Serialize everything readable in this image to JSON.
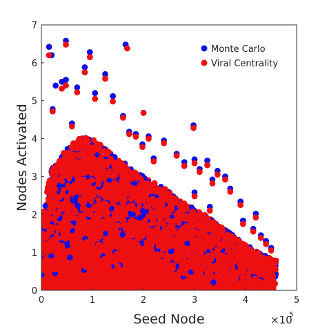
{
  "chart_data": {
    "type": "scatter",
    "xlabel": "Seed Node",
    "ylabel": "Nodes Activated",
    "x_multiplier_label": "×10",
    "x_multiplier_exponent": "5",
    "xlim": [
      0,
      500000
    ],
    "ylim": [
      0,
      7
    ],
    "x_ticks": [
      "0",
      "1",
      "2",
      "3",
      "4",
      "5"
    ],
    "y_ticks": [
      "0",
      "1",
      "2",
      "3",
      "4",
      "5",
      "6",
      "7"
    ],
    "legend_position": "top-right",
    "series": [
      {
        "name": "Monte Carlo",
        "color": "#1010e0",
        "points": [
          [
            15000,
            6.42
          ],
          [
            48000,
            6.58
          ],
          [
            20000,
            6.2
          ],
          [
            95000,
            6.28
          ],
          [
            165000,
            6.48
          ],
          [
            85000,
            5.88
          ],
          [
            125000,
            5.7
          ],
          [
            48000,
            5.55
          ],
          [
            40000,
            5.5
          ],
          [
            28000,
            5.4
          ],
          [
            70000,
            5.35
          ],
          [
            105000,
            5.2
          ],
          [
            140000,
            5.12
          ],
          [
            160000,
            4.6
          ],
          [
            200000,
            4.68
          ],
          [
            22000,
            4.78
          ],
          [
            60000,
            4.4
          ],
          [
            298000,
            4.35
          ],
          [
            172000,
            4.18
          ],
          [
            185000,
            4.12
          ],
          [
            210000,
            4.06
          ],
          [
            240000,
            3.95
          ],
          [
            198000,
            3.85
          ],
          [
            265000,
            3.6
          ],
          [
            220000,
            3.48
          ],
          [
            300000,
            3.45
          ],
          [
            325000,
            3.42
          ],
          [
            280000,
            3.38
          ],
          [
            310000,
            3.2
          ],
          [
            345000,
            3.15
          ],
          [
            360000,
            3.0
          ],
          [
            335000,
            2.92
          ],
          [
            370000,
            2.68
          ],
          [
            300000,
            2.58
          ],
          [
            390000,
            2.34
          ],
          [
            330000,
            2.2
          ],
          [
            420000,
            2.02
          ],
          [
            395000,
            1.84
          ],
          [
            415000,
            1.62
          ],
          [
            430000,
            1.45
          ],
          [
            440000,
            1.3
          ],
          [
            450000,
            1.12
          ]
        ]
      },
      {
        "name": "Viral Centrality",
        "color": "#ee1010",
        "points": [
          [
            15000,
            6.2
          ],
          [
            48000,
            6.48
          ],
          [
            168000,
            6.38
          ],
          [
            95000,
            6.15
          ],
          [
            85000,
            5.75
          ],
          [
            125000,
            5.58
          ],
          [
            48000,
            5.4
          ],
          [
            40000,
            5.32
          ],
          [
            70000,
            5.22
          ],
          [
            105000,
            5.05
          ],
          [
            140000,
            4.98
          ],
          [
            160000,
            4.55
          ],
          [
            200000,
            4.68
          ],
          [
            22000,
            4.72
          ],
          [
            60000,
            4.32
          ],
          [
            298000,
            4.28
          ],
          [
            172000,
            4.12
          ],
          [
            185000,
            4.05
          ],
          [
            210000,
            4.0
          ],
          [
            240000,
            3.88
          ],
          [
            198000,
            3.78
          ],
          [
            265000,
            3.55
          ],
          [
            220000,
            3.4
          ],
          [
            300000,
            3.35
          ],
          [
            325000,
            3.3
          ],
          [
            280000,
            3.28
          ],
          [
            310000,
            3.12
          ],
          [
            345000,
            3.05
          ],
          [
            360000,
            2.92
          ],
          [
            335000,
            2.82
          ],
          [
            370000,
            2.6
          ],
          [
            300000,
            2.48
          ],
          [
            390000,
            2.25
          ],
          [
            330000,
            2.1
          ],
          [
            420000,
            1.92
          ],
          [
            395000,
            1.75
          ],
          [
            415000,
            1.55
          ],
          [
            430000,
            1.38
          ],
          [
            440000,
            1.22
          ],
          [
            450000,
            1.05
          ]
        ]
      }
    ],
    "dense_region": {
      "description_free_values": true,
      "x_range": [
        0,
        460000
      ],
      "upper_envelope": [
        [
          0,
          1.9
        ],
        [
          10000,
          2.6
        ],
        [
          20000,
          3.2
        ],
        [
          40000,
          3.6
        ],
        [
          60000,
          3.9
        ],
        [
          80000,
          4.1
        ],
        [
          100000,
          4.0
        ],
        [
          130000,
          3.7
        ],
        [
          160000,
          3.4
        ],
        [
          200000,
          3.0
        ],
        [
          240000,
          2.7
        ],
        [
          280000,
          2.3
        ],
        [
          320000,
          2.0
        ],
        [
          360000,
          1.6
        ],
        [
          400000,
          1.2
        ],
        [
          440000,
          0.9
        ],
        [
          460000,
          0.8
        ]
      ]
    }
  }
}
